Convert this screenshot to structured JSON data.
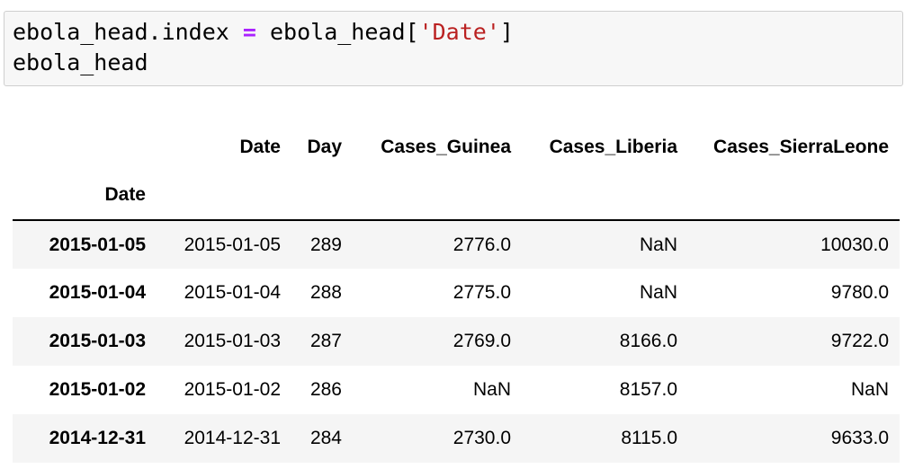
{
  "code": {
    "line1": {
      "lhs": "ebola_head.index ",
      "op": "=",
      "mid": " ebola_head[",
      "str": "'Date'",
      "end": "]"
    },
    "line2": "ebola_head"
  },
  "dataframe": {
    "columns": [
      "Date",
      "Day",
      "Cases_Guinea",
      "Cases_Liberia",
      "Cases_SierraLeone"
    ],
    "index_name": "Date",
    "rows": [
      {
        "index": "2015-01-05",
        "cells": [
          "2015-01-05",
          "289",
          "2776.0",
          "NaN",
          "10030.0"
        ]
      },
      {
        "index": "2015-01-04",
        "cells": [
          "2015-01-04",
          "288",
          "2775.0",
          "NaN",
          "9780.0"
        ]
      },
      {
        "index": "2015-01-03",
        "cells": [
          "2015-01-03",
          "287",
          "2769.0",
          "8166.0",
          "9722.0"
        ]
      },
      {
        "index": "2015-01-02",
        "cells": [
          "2015-01-02",
          "286",
          "NaN",
          "8157.0",
          "NaN"
        ]
      },
      {
        "index": "2014-12-31",
        "cells": [
          "2014-12-31",
          "284",
          "2730.0",
          "8115.0",
          "9633.0"
        ]
      }
    ]
  },
  "colors": {
    "keyword_operator": "#aa22ff",
    "string": "#ba2121",
    "cell_background": "#f7f7f7",
    "stripe": "#f5f5f5"
  }
}
